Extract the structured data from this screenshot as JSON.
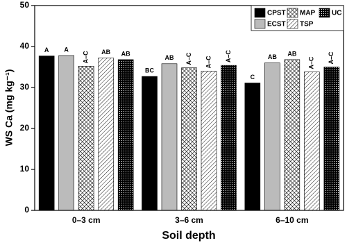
{
  "chart_data": {
    "type": "bar",
    "ylabel": "WS Ca (mg kg⁻¹)",
    "xlabel": "Soil depth",
    "categories": [
      "0–3 cm",
      "3–6 cm",
      "6–10 cm"
    ],
    "ylim": [
      0,
      50
    ],
    "yticks": [
      0,
      10,
      20,
      30,
      40,
      50
    ],
    "legend": "upper right",
    "series": [
      {
        "name": "CPST",
        "color": "#000000",
        "pattern": "solid",
        "values": [
          37.7,
          32.7,
          31.1
        ],
        "value_labels": [
          "A",
          "BC",
          "C"
        ]
      },
      {
        "name": "ECST",
        "color": "#bbbbbb",
        "pattern": "solid",
        "values": [
          37.8,
          35.8,
          36.0
        ],
        "value_labels": [
          "A",
          "AB",
          "AB"
        ]
      },
      {
        "name": "MAP",
        "color": "#000000",
        "pattern": "crosshatch",
        "values": [
          35.2,
          34.8,
          36.8
        ],
        "value_labels": [
          "A–C",
          "A–C",
          "AB"
        ]
      },
      {
        "name": "TSP",
        "color": "#000000",
        "pattern": "diagonal",
        "values": [
          37.2,
          34.0,
          33.8
        ],
        "value_labels": [
          "AB",
          "A–C",
          "A–C"
        ]
      },
      {
        "name": "UC",
        "color": "#000000",
        "pattern": "dots",
        "values": [
          36.8,
          35.4,
          35.0
        ],
        "value_labels": [
          "AB",
          "A–C",
          "A–C"
        ]
      }
    ]
  }
}
